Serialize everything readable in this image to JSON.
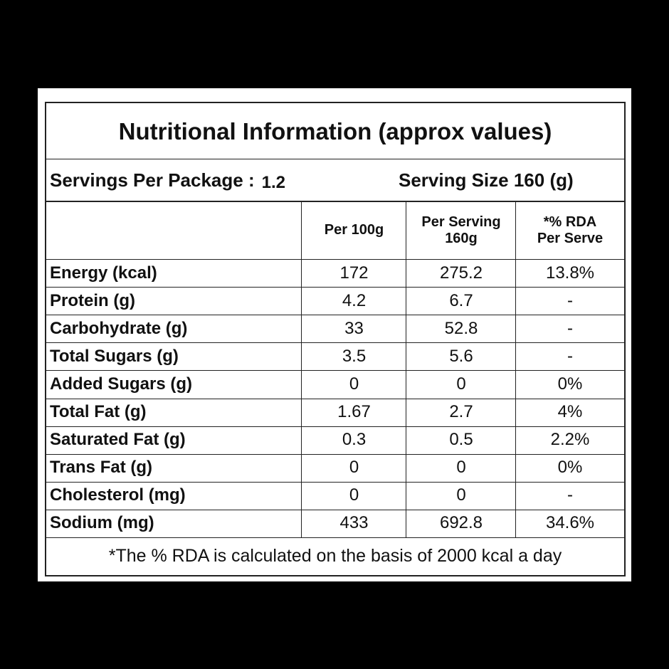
{
  "title": "Nutritional Information (approx values)",
  "servings_per_package_label": "Servings Per Package :",
  "servings_per_package_value": "1.2",
  "serving_size": "Serving Size 160 (g)",
  "columns": [
    "Per 100g",
    "Per Serving\n160g",
    "*% RDA\nPer Serve"
  ],
  "rows": [
    {
      "nutrient": "Energy (kcal)",
      "per100g": "172",
      "per_serving": "275.2",
      "rda": "13.8%"
    },
    {
      "nutrient": "Protein (g)",
      "per100g": "4.2",
      "per_serving": "6.7",
      "rda": "-"
    },
    {
      "nutrient": "Carbohydrate (g)",
      "per100g": "33",
      "per_serving": "52.8",
      "rda": "-"
    },
    {
      "nutrient": "Total Sugars (g)",
      "per100g": "3.5",
      "per_serving": "5.6",
      "rda": "-"
    },
    {
      "nutrient": "Added Sugars (g)",
      "per100g": "0",
      "per_serving": "0",
      "rda": "0%"
    },
    {
      "nutrient": "Total Fat (g)",
      "per100g": "1.67",
      "per_serving": "2.7",
      "rda": "4%"
    },
    {
      "nutrient": "Saturated Fat (g)",
      "per100g": "0.3",
      "per_serving": "0.5",
      "rda": "2.2%"
    },
    {
      "nutrient": "Trans Fat (g)",
      "per100g": "0",
      "per_serving": "0",
      "rda": "0%"
    },
    {
      "nutrient": "Cholesterol (mg)",
      "per100g": "0",
      "per_serving": "0",
      "rda": "-"
    },
    {
      "nutrient": "Sodium (mg)",
      "per100g": "433",
      "per_serving": "692.8",
      "rda": "34.6%"
    }
  ],
  "footnote": "*The % RDA is calculated on the basis of 2000 kcal a day"
}
